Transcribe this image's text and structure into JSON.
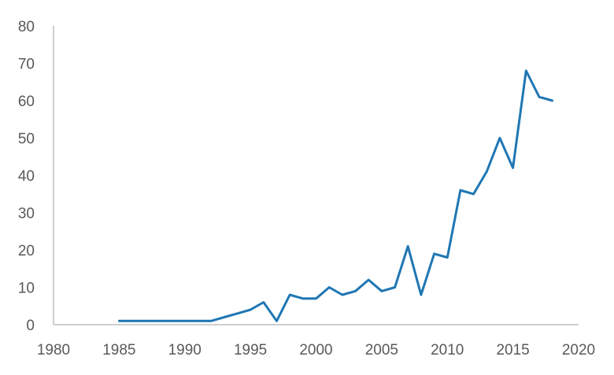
{
  "chart_data": {
    "type": "line",
    "title": "",
    "xlabel": "",
    "ylabel": "",
    "xlim": [
      1980,
      2020
    ],
    "ylim": [
      0,
      80
    ],
    "x_ticks": [
      "1980",
      "1985",
      "1990",
      "1995",
      "2000",
      "2005",
      "2010",
      "2015",
      "2020"
    ],
    "y_ticks": [
      "0",
      "10",
      "20",
      "30",
      "40",
      "50",
      "60",
      "70",
      "80"
    ],
    "grid": false,
    "legend": "none",
    "series": [
      {
        "color": "#1f77b4",
        "x": [
          1985,
          1986,
          1987,
          1988,
          1989,
          1990,
          1991,
          1992,
          1993,
          1994,
          1995,
          1996,
          1997,
          1998,
          1999,
          2000,
          2001,
          2002,
          2003,
          2004,
          2005,
          2006,
          2007,
          2008,
          2009,
          2010,
          2011,
          2012,
          2013,
          2014,
          2015,
          2016,
          2017,
          2018
        ],
        "values": [
          1,
          1,
          1,
          1,
          1,
          1,
          1,
          1,
          2,
          3,
          4,
          6,
          1,
          8,
          7,
          7,
          10,
          8,
          9,
          12,
          9,
          10,
          21,
          8,
          19,
          18,
          36,
          35,
          41,
          50,
          42,
          68,
          61,
          60
        ]
      }
    ]
  }
}
